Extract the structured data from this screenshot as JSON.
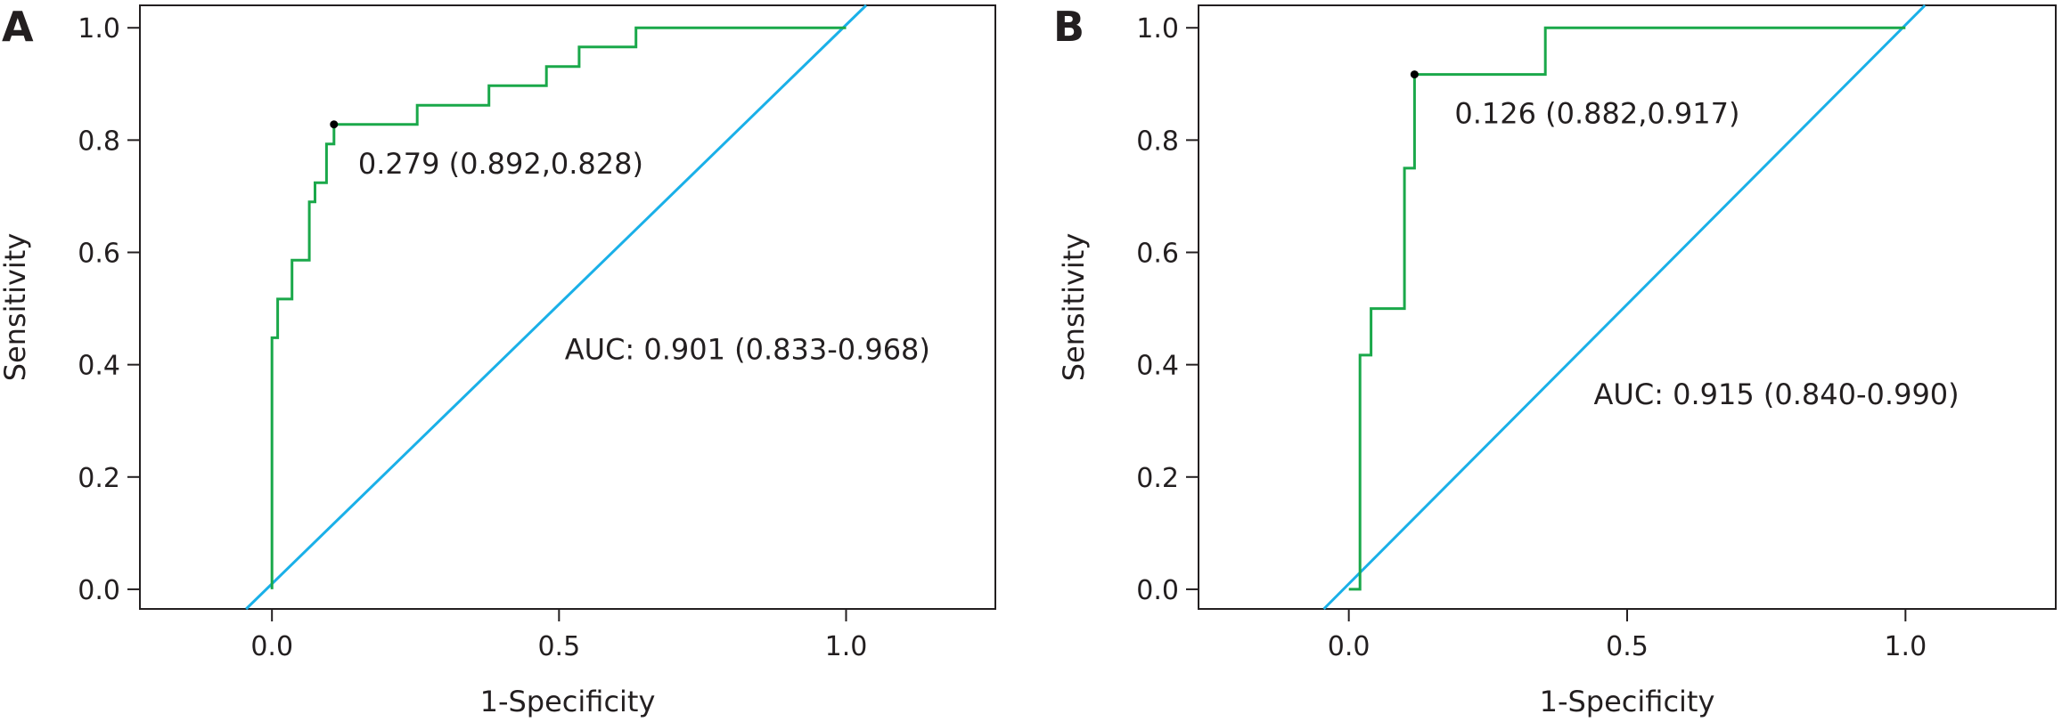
{
  "chart_data": [
    {
      "type": "line",
      "panel_label": "A",
      "xlabel": "1-Specificity",
      "ylabel": "Sensitivity",
      "xlim": [
        -0.23,
        1.26
      ],
      "ylim": [
        -0.035,
        1.04
      ],
      "x_ticks": [
        0.0,
        0.5,
        1.0
      ],
      "x_tick_labels": [
        "0.0",
        "0.5",
        "1.0"
      ],
      "y_ticks": [
        0.0,
        0.2,
        0.4,
        0.6,
        0.8,
        1.0
      ],
      "y_tick_labels": [
        "0.0",
        "0.2",
        "0.4",
        "0.6",
        "0.8",
        "1.0"
      ],
      "grid": false,
      "series": [
        {
          "role": "roc-curve",
          "color": "#1aa84a",
          "x": [
            0.0,
            0.0,
            0.0,
            0.01,
            0.01,
            0.035,
            0.035,
            0.065,
            0.065,
            0.075,
            0.075,
            0.095,
            0.095,
            0.108,
            0.108,
            0.253,
            0.253,
            0.378,
            0.378,
            0.478,
            0.478,
            0.535,
            0.535,
            0.634,
            0.634,
            1.0
          ],
          "y": [
            0.0,
            0.0,
            0.448,
            0.448,
            0.517,
            0.517,
            0.586,
            0.586,
            0.69,
            0.69,
            0.724,
            0.724,
            0.793,
            0.793,
            0.828,
            0.828,
            0.862,
            0.862,
            0.897,
            0.897,
            0.931,
            0.931,
            0.966,
            0.966,
            1.0,
            1.0
          ]
        },
        {
          "role": "reference-diagonal",
          "color": "#1ab0e8",
          "x": [
            -0.045,
            1.035
          ],
          "y": [
            -0.035,
            1.04
          ]
        }
      ],
      "cutoff_point": {
        "x": 0.108,
        "y": 0.828
      },
      "annotations": [
        {
          "text": "0.279 (0.892,0.828)",
          "x": 0.15,
          "y": 0.74
        },
        {
          "text": "AUC: 0.901 (0.833-0.968)",
          "x": 0.51,
          "y": 0.41
        }
      ]
    },
    {
      "type": "line",
      "panel_label": "B",
      "xlabel": "1-Specificity",
      "ylabel": "Sensitivity",
      "xlim": [
        -0.27,
        1.27
      ],
      "ylim": [
        -0.035,
        1.04
      ],
      "x_ticks": [
        0.0,
        0.5,
        1.0
      ],
      "x_tick_labels": [
        "0.0",
        "0.5",
        "1.0"
      ],
      "y_ticks": [
        0.0,
        0.2,
        0.4,
        0.6,
        0.8,
        1.0
      ],
      "y_tick_labels": [
        "0.0",
        "0.2",
        "0.4",
        "0.6",
        "0.8",
        "1.0"
      ],
      "grid": false,
      "series": [
        {
          "role": "roc-curve",
          "color": "#1aa84a",
          "x": [
            0.0,
            0.02,
            0.02,
            0.04,
            0.04,
            0.1,
            0.1,
            0.118,
            0.118,
            0.353,
            0.353,
            1.0
          ],
          "y": [
            0.0,
            0.0,
            0.417,
            0.417,
            0.5,
            0.5,
            0.75,
            0.75,
            0.917,
            0.917,
            1.0,
            1.0
          ]
        },
        {
          "role": "reference-diagonal",
          "color": "#1ab0e8",
          "x": [
            -0.045,
            1.035
          ],
          "y": [
            -0.035,
            1.04
          ]
        }
      ],
      "cutoff_point": {
        "x": 0.118,
        "y": 0.917
      },
      "annotations": [
        {
          "text": "0.126 (0.882,0.917)",
          "x": 0.19,
          "y": 0.83
        },
        {
          "text": "AUC: 0.915 (0.840-0.990)",
          "x": 0.44,
          "y": 0.33
        }
      ]
    }
  ]
}
